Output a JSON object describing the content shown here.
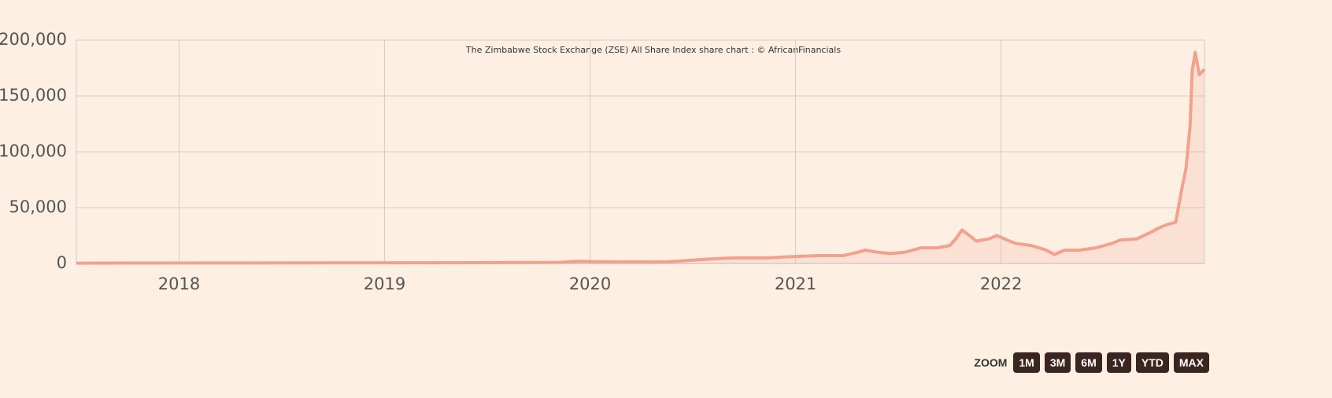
{
  "chart_data": {
    "type": "line",
    "title": "The Zimbabwe Stock Exchange (ZSE) All Share Index share chart : © AfricanFinancials",
    "x": [
      2017.5,
      2019.43,
      2019.85,
      2019.94,
      2020.12,
      2020.38,
      2020.5,
      2020.58,
      2020.69,
      2020.86,
      2020.96,
      2021.11,
      2021.23,
      2021.3,
      2021.34,
      2021.4,
      2021.46,
      2021.53,
      2021.61,
      2021.69,
      2021.75,
      2021.78,
      2021.81,
      2021.84,
      2021.88,
      2021.94,
      2021.98,
      2022.03,
      2022.07,
      2022.15,
      2022.22,
      2022.26,
      2022.31,
      2022.38,
      2022.46,
      2022.54,
      2022.58,
      2022.66,
      2022.73,
      2022.77,
      2022.81,
      2022.85,
      2022.88,
      2022.9,
      2022.92,
      2022.93,
      2022.945,
      2022.965,
      2022.99
    ],
    "series": [
      {
        "name": "ZSE All Share Index",
        "color": "#f4a08e",
        "values": [
          300,
          700,
          1000,
          2000,
          1400,
          1600,
          3000,
          4000,
          5000,
          5000,
          6000,
          7000,
          7000,
          10000,
          12000,
          10000,
          9000,
          10000,
          14000,
          14000,
          16000,
          22000,
          30000,
          26000,
          20000,
          22000,
          25000,
          21000,
          18000,
          16000,
          12000,
          8000,
          12000,
          12000,
          14000,
          18000,
          21000,
          22000,
          28000,
          32000,
          35000,
          37000,
          67000,
          85000,
          123000,
          172000,
          189000,
          169000,
          174000
        ]
      }
    ],
    "xlim": [
      2017.5,
      2022.99
    ],
    "xticks": [
      2018,
      2019,
      2020,
      2021,
      2022
    ],
    "ylim": [
      0,
      200000
    ],
    "yticks": [
      0,
      {
        "value": 50000,
        "label": "50,000"
      },
      {
        "value": 100000,
        "label": "100,000"
      },
      {
        "value": 150000,
        "label": "150,000"
      },
      {
        "value": 200000,
        "label": "200,000"
      }
    ],
    "grid": true,
    "zoom_label": "ZOOM",
    "zoom_buttons": [
      "1M",
      "3M",
      "6M",
      "1Y",
      "YTD",
      "MAX"
    ]
  }
}
